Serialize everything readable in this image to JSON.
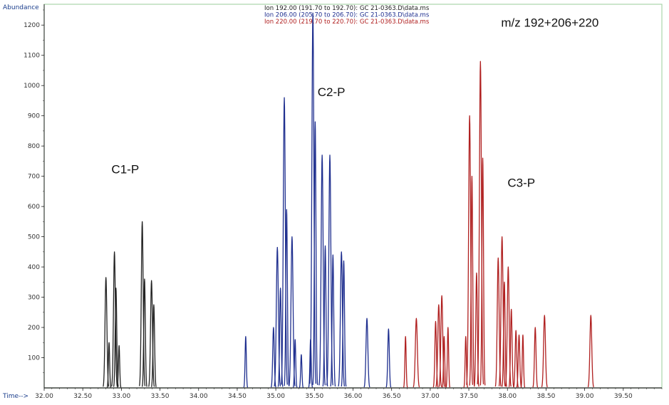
{
  "chart_data": {
    "type": "line",
    "xlabel": "Time-->",
    "ylabel": "Abundance",
    "xlim": [
      32.0,
      40.0
    ],
    "ylim": [
      0,
      1250
    ],
    "x_ticks": [
      "32.00",
      "32.50",
      "33.00",
      "33.50",
      "34.00",
      "34.50",
      "35.00",
      "35.50",
      "36.00",
      "36.50",
      "37.00",
      "37.50",
      "38.00",
      "38.50",
      "39.00",
      "39.50"
    ],
    "y_ticks": [
      "100",
      "200",
      "300",
      "400",
      "500",
      "600",
      "700",
      "800",
      "900",
      "1000",
      "1100",
      "1200"
    ],
    "legend": [
      {
        "text": "Ion 192.00 (191.70 to 192.70): GC 21-0363.D\\data.ms",
        "color": "#222222"
      },
      {
        "text": "Ion 206.00 (205.70 to 206.70): GC 21-0363.D\\data.ms",
        "color": "#1f2f8f"
      },
      {
        "text": "Ion 220.00 (219.70 to 220.70): GC 21-0363.D\\data.ms",
        "color": "#b02020"
      }
    ],
    "annotations": [
      {
        "text": "m/z 192+206+220",
        "x": 38.55,
        "y": 1195
      },
      {
        "text": "C1-P",
        "x": 33.05,
        "y": 710
      },
      {
        "text": "C2-P",
        "x": 35.72,
        "y": 965
      },
      {
        "text": "C3-P",
        "x": 38.18,
        "y": 665
      }
    ],
    "series": [
      {
        "name": "Ion 192.00",
        "color": "#222222",
        "peaks": [
          {
            "rt": 32.8,
            "height": 365,
            "width": 0.012
          },
          {
            "rt": 32.84,
            "height": 150,
            "width": 0.008
          },
          {
            "rt": 32.91,
            "height": 450,
            "width": 0.012
          },
          {
            "rt": 32.93,
            "height": 330,
            "width": 0.01
          },
          {
            "rt": 32.97,
            "height": 140,
            "width": 0.008
          },
          {
            "rt": 33.27,
            "height": 550,
            "width": 0.012
          },
          {
            "rt": 33.3,
            "height": 360,
            "width": 0.01
          },
          {
            "rt": 33.39,
            "height": 355,
            "width": 0.012
          },
          {
            "rt": 33.42,
            "height": 275,
            "width": 0.01
          }
        ]
      },
      {
        "name": "Ion 206.00",
        "color": "#1f2f8f",
        "peaks": [
          {
            "rt": 34.61,
            "height": 170,
            "width": 0.008
          },
          {
            "rt": 34.97,
            "height": 200,
            "width": 0.01
          },
          {
            "rt": 35.02,
            "height": 465,
            "width": 0.013
          },
          {
            "rt": 35.06,
            "height": 330,
            "width": 0.01
          },
          {
            "rt": 35.11,
            "height": 960,
            "width": 0.013
          },
          {
            "rt": 35.14,
            "height": 590,
            "width": 0.01
          },
          {
            "rt": 35.21,
            "height": 500,
            "width": 0.013
          },
          {
            "rt": 35.25,
            "height": 160,
            "width": 0.008
          },
          {
            "rt": 35.33,
            "height": 110,
            "width": 0.008
          },
          {
            "rt": 35.45,
            "height": 160,
            "width": 0.008
          },
          {
            "rt": 35.48,
            "height": 1240,
            "width": 0.013
          },
          {
            "rt": 35.51,
            "height": 880,
            "width": 0.01
          },
          {
            "rt": 35.6,
            "height": 770,
            "width": 0.013
          },
          {
            "rt": 35.64,
            "height": 470,
            "width": 0.01
          },
          {
            "rt": 35.7,
            "height": 770,
            "width": 0.013
          },
          {
            "rt": 35.74,
            "height": 440,
            "width": 0.01
          },
          {
            "rt": 35.85,
            "height": 450,
            "width": 0.013
          },
          {
            "rt": 35.88,
            "height": 420,
            "width": 0.01
          },
          {
            "rt": 36.18,
            "height": 230,
            "width": 0.012
          },
          {
            "rt": 36.46,
            "height": 195,
            "width": 0.01
          }
        ]
      },
      {
        "name": "Ion 220.00",
        "color": "#b02020",
        "peaks": [
          {
            "rt": 36.68,
            "height": 170,
            "width": 0.008
          },
          {
            "rt": 36.82,
            "height": 230,
            "width": 0.013
          },
          {
            "rt": 37.07,
            "height": 220,
            "width": 0.01
          },
          {
            "rt": 37.11,
            "height": 275,
            "width": 0.012
          },
          {
            "rt": 37.15,
            "height": 305,
            "width": 0.012
          },
          {
            "rt": 37.18,
            "height": 170,
            "width": 0.008
          },
          {
            "rt": 37.23,
            "height": 200,
            "width": 0.008
          },
          {
            "rt": 37.46,
            "height": 170,
            "width": 0.008
          },
          {
            "rt": 37.51,
            "height": 900,
            "width": 0.013
          },
          {
            "rt": 37.54,
            "height": 700,
            "width": 0.01
          },
          {
            "rt": 37.6,
            "height": 380,
            "width": 0.01
          },
          {
            "rt": 37.65,
            "height": 1080,
            "width": 0.013
          },
          {
            "rt": 37.68,
            "height": 760,
            "width": 0.01
          },
          {
            "rt": 37.88,
            "height": 430,
            "width": 0.012
          },
          {
            "rt": 37.93,
            "height": 500,
            "width": 0.013
          },
          {
            "rt": 37.96,
            "height": 350,
            "width": 0.01
          },
          {
            "rt": 38.01,
            "height": 400,
            "width": 0.012
          },
          {
            "rt": 38.05,
            "height": 260,
            "width": 0.01
          },
          {
            "rt": 38.11,
            "height": 190,
            "width": 0.01
          },
          {
            "rt": 38.15,
            "height": 175,
            "width": 0.01
          },
          {
            "rt": 38.2,
            "height": 175,
            "width": 0.008
          },
          {
            "rt": 38.36,
            "height": 200,
            "width": 0.01
          },
          {
            "rt": 38.48,
            "height": 240,
            "width": 0.012
          },
          {
            "rt": 39.08,
            "height": 240,
            "width": 0.012
          }
        ]
      }
    ]
  }
}
